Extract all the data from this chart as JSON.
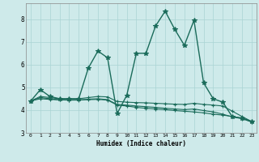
{
  "xlabel": "Humidex (Indice chaleur)",
  "xlim": [
    -0.5,
    23.5
  ],
  "ylim": [
    3,
    8.7
  ],
  "yticks": [
    3,
    4,
    5,
    6,
    7,
    8
  ],
  "xticks": [
    0,
    1,
    2,
    3,
    4,
    5,
    6,
    7,
    8,
    9,
    10,
    11,
    12,
    13,
    14,
    15,
    16,
    17,
    18,
    19,
    20,
    21,
    22,
    23
  ],
  "background_color": "#ceeaea",
  "line_color": "#1a6b5a",
  "series": [
    [
      4.4,
      4.9,
      4.6,
      4.5,
      4.5,
      4.5,
      5.85,
      6.6,
      6.3,
      3.85,
      4.65,
      6.5,
      6.5,
      7.7,
      8.35,
      7.55,
      6.85,
      7.95,
      5.2,
      4.5,
      4.35,
      3.7,
      3.65,
      3.5
    ],
    [
      4.4,
      4.6,
      4.55,
      4.5,
      4.5,
      4.5,
      4.55,
      4.6,
      4.58,
      4.38,
      4.35,
      4.33,
      4.32,
      4.3,
      4.28,
      4.26,
      4.25,
      4.3,
      4.25,
      4.22,
      4.18,
      3.95,
      3.72,
      3.5
    ],
    [
      4.4,
      4.55,
      4.5,
      4.45,
      4.44,
      4.44,
      4.48,
      4.5,
      4.46,
      4.25,
      4.22,
      4.18,
      4.15,
      4.12,
      4.08,
      4.05,
      4.02,
      4.05,
      3.98,
      3.92,
      3.82,
      3.7,
      3.62,
      3.48
    ],
    [
      4.4,
      4.5,
      4.47,
      4.45,
      4.44,
      4.45,
      4.46,
      4.47,
      4.44,
      4.22,
      4.18,
      4.12,
      4.08,
      4.05,
      4.02,
      3.98,
      3.95,
      3.92,
      3.88,
      3.82,
      3.78,
      3.72,
      3.65,
      3.48
    ]
  ]
}
